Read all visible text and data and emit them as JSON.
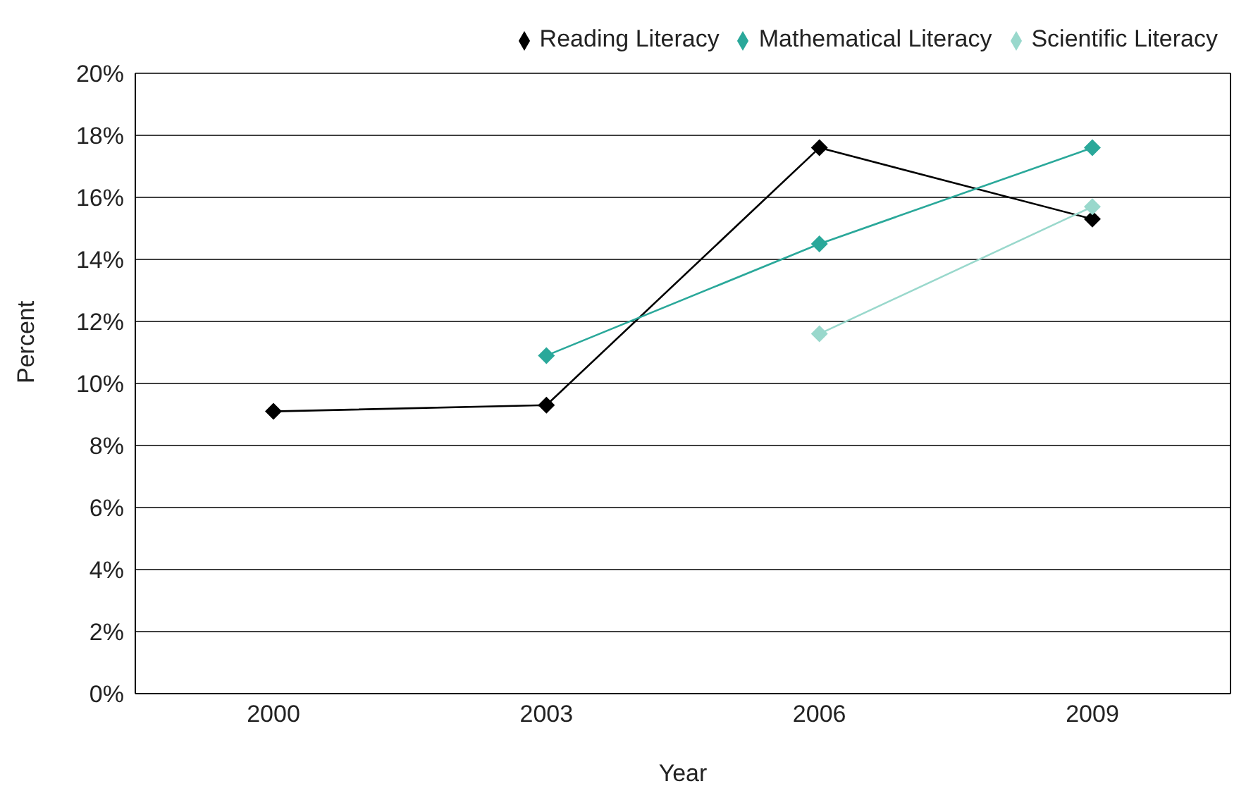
{
  "chart_data": {
    "type": "line",
    "xlabel": "Year",
    "ylabel": "Percent",
    "categories": [
      "2000",
      "2003",
      "2006",
      "2009"
    ],
    "series": [
      {
        "name": "Reading Literacy",
        "color": "#000000",
        "values": [
          9.1,
          9.3,
          17.6,
          15.3
        ]
      },
      {
        "name": "Mathematical Literacy",
        "color": "#2aa89a",
        "values": [
          null,
          10.9,
          14.5,
          17.6
        ]
      },
      {
        "name": "Scientific Literacy",
        "color": "#99d8cc",
        "values": [
          null,
          null,
          11.6,
          15.7
        ]
      }
    ],
    "ylim": [
      0,
      20
    ],
    "yticks": [
      {
        "value": 0,
        "label": "0%"
      },
      {
        "value": 2,
        "label": "2%"
      },
      {
        "value": 4,
        "label": "4%"
      },
      {
        "value": 6,
        "label": "6%"
      },
      {
        "value": 8,
        "label": "8%"
      },
      {
        "value": 10,
        "label": "10%"
      },
      {
        "value": 12,
        "label": "12%"
      },
      {
        "value": 14,
        "label": "14%"
      },
      {
        "value": 16,
        "label": "16%"
      },
      {
        "value": 18,
        "label": "18%"
      },
      {
        "value": 20,
        "label": "20%"
      }
    ],
    "grid": "y",
    "legend": "top right",
    "marker": "diamond",
    "line_style": "solid"
  }
}
